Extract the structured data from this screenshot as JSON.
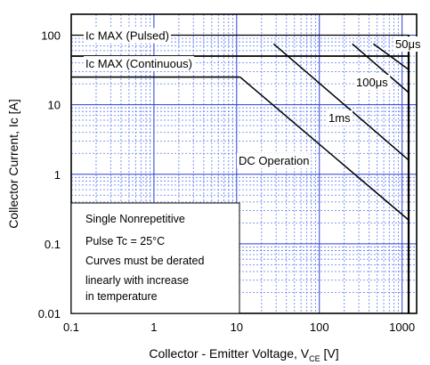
{
  "chart_data": {
    "type": "line",
    "x_scale": "log",
    "y_scale": "log",
    "xlim": [
      0.1,
      1500
    ],
    "ylim": [
      0.01,
      200
    ],
    "x_ticks": [
      0.1,
      1,
      10,
      100,
      1000
    ],
    "x_tick_labels": [
      "0.1",
      "1",
      "10",
      "100",
      "1000"
    ],
    "y_ticks": [
      0.01,
      0.1,
      1,
      10,
      100
    ],
    "y_tick_labels": [
      "0.01",
      "0.1",
      "1",
      "10",
      "100"
    ],
    "xlabel_main": "Collector - Emitter Voltage, V",
    "xlabel_sub": "CE",
    "xlabel_unit": " [V]",
    "ylabel": "Collector Current, Ic [A]",
    "grid": "major and minor, dotted blue",
    "reference_lines": [
      {
        "label": "Ic MAX (Pulsed)",
        "y": 100
      },
      {
        "label": "Ic MAX (Continuous)",
        "y": 50
      }
    ],
    "vertical_limit": {
      "x": 1200
    },
    "series": [
      {
        "name": "50μs",
        "x": [
          450,
          1200,
          1200
        ],
        "y": [
          75,
          32,
          0
        ]
      },
      {
        "name": "100μs",
        "x": [
          250,
          1200,
          1200
        ],
        "y": [
          75,
          15,
          0
        ]
      },
      {
        "name": "1ms",
        "x": [
          28,
          1200
        ],
        "y": [
          75,
          1.6
        ]
      },
      {
        "name": "DC Operation",
        "x": [
          11,
          1200
        ],
        "y": [
          25,
          0.22
        ]
      }
    ],
    "curve_labels": [
      {
        "text": "50μs"
      },
      {
        "text": "100μs"
      },
      {
        "text": "1ms"
      },
      {
        "text": "DC Operation"
      }
    ],
    "notes": [
      "Single Nonrepetitive",
      "Pulse Tc = 25°C",
      "Curves must be derated",
      "linearly with increase",
      "in temperature"
    ]
  }
}
